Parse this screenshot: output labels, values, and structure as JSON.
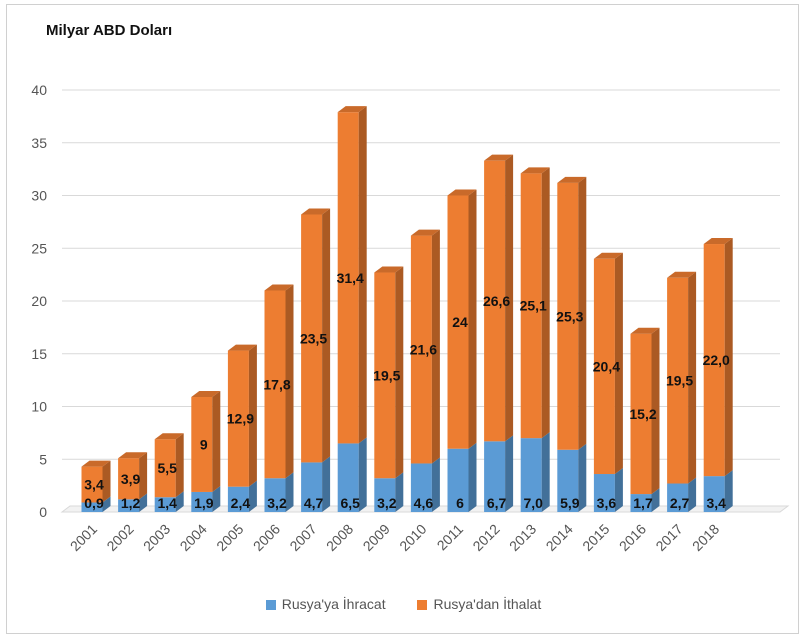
{
  "chart_data": {
    "type": "bar",
    "stacked": true,
    "title": "Milyar ABD Doları",
    "categories": [
      "2001",
      "2002",
      "2003",
      "2004",
      "2005",
      "2006",
      "2007",
      "2008",
      "2009",
      "2010",
      "2011",
      "2012",
      "2013",
      "2014",
      "2015",
      "2016",
      "2017",
      "2018"
    ],
    "series": [
      {
        "name": "Rusya'ya İhracat",
        "color": "#5b9bd5",
        "values": [
          0.9,
          1.2,
          1.4,
          1.9,
          2.4,
          3.2,
          4.7,
          6.5,
          3.2,
          4.6,
          6,
          6.7,
          7.0,
          5.9,
          3.6,
          1.7,
          2.7,
          3.4
        ],
        "labels": [
          "0,9",
          "1,2",
          "1,4",
          "1,9",
          "2,4",
          "3,2",
          "4,7",
          "6,5",
          "3,2",
          "4,6",
          "6",
          "6,7",
          "7,0",
          "5,9",
          "3,6",
          "1,7",
          "2,7",
          "3,4"
        ]
      },
      {
        "name": "Rusya'dan İthalat",
        "color": "#ed7d31",
        "values": [
          3.4,
          3.9,
          5.5,
          9,
          12.9,
          17.8,
          23.5,
          31.4,
          19.5,
          21.6,
          24,
          26.6,
          25.1,
          25.3,
          20.4,
          15.2,
          19.5,
          22.0
        ],
        "labels": [
          "3,4",
          "3,9",
          "5,5",
          "9",
          "12,9",
          "17,8",
          "23,5",
          "31,4",
          "19,5",
          "21,6",
          "24",
          "26,6",
          "25,1",
          "25,3",
          "20,4",
          "15,2",
          "19,5",
          "22,0"
        ]
      }
    ],
    "yticks": [
      "0",
      "5",
      "10",
      "15",
      "20",
      "25",
      "30",
      "35",
      "40"
    ],
    "ylim": [
      0,
      40
    ],
    "grid": true,
    "legend_position": "bottom"
  }
}
